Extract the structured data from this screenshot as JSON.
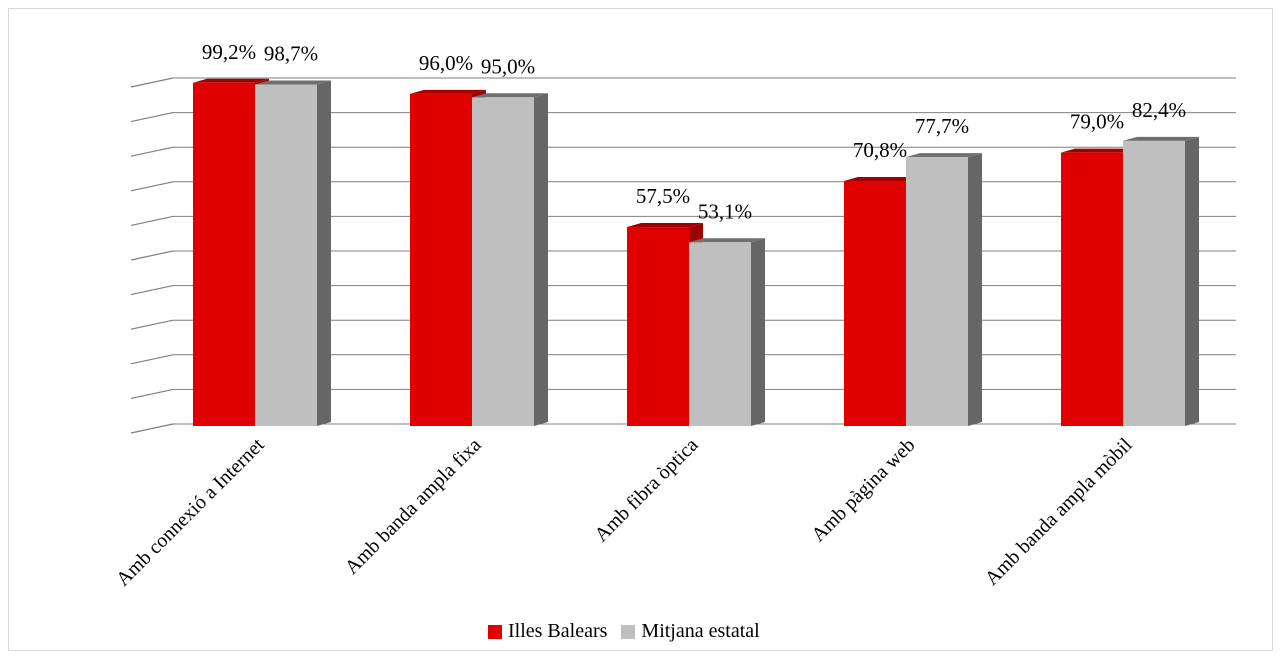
{
  "chart_data": {
    "type": "bar",
    "categories": [
      "Amb connexió a Internet",
      "Amb banda ampla fixa",
      "Amb fibra òptica",
      "Amb pàgina web",
      "Amb banda ampla mòbil"
    ],
    "series": [
      {
        "name": "Illes Balears",
        "values": [
          99.2,
          96.0,
          57.5,
          70.8,
          79.0
        ],
        "labels": [
          "99,2%",
          "96,0%",
          "57,5%",
          "70,8%",
          "79,0%"
        ],
        "color": "#e00000",
        "top_color": "#a00000",
        "side_color": "#a00000"
      },
      {
        "name": "Mitjana estatal",
        "values": [
          98.7,
          95.0,
          53.1,
          77.7,
          82.4
        ],
        "labels": [
          "98,7%",
          "95,0%",
          "53,1%",
          "77,7%",
          "82,4%"
        ],
        "color": "#bfbfbf",
        "top_color": "#6f6f6f",
        "side_color": "#666666"
      }
    ],
    "ylim": [
      0,
      100
    ],
    "gridlines": true,
    "axis_tick_labels": false,
    "legend_position": "bottom",
    "style": "3d-column"
  }
}
